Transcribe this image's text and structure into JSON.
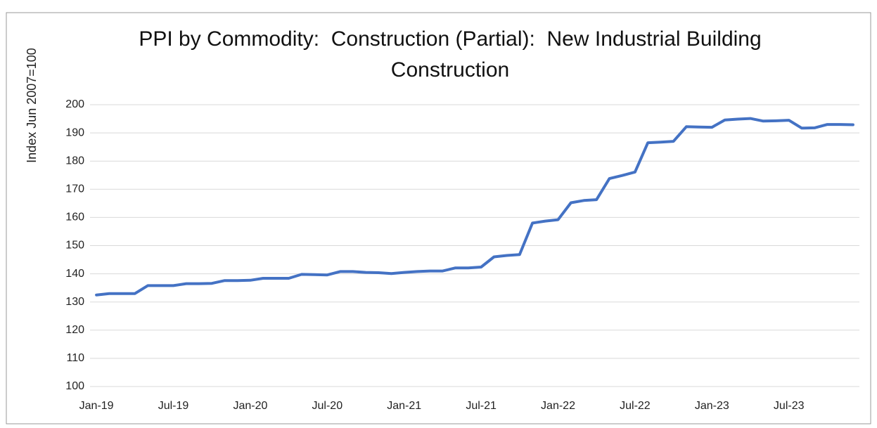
{
  "chart_data": {
    "type": "line",
    "title": "PPI by Commodity:  Construction (Partial):  New Industrial Building Construction",
    "y_label": "Index Jun 2007=100",
    "categories": [
      "Jan-19",
      null,
      null,
      null,
      null,
      null,
      "Jul-19",
      null,
      null,
      null,
      null,
      null,
      "Jan-20",
      null,
      null,
      null,
      null,
      null,
      "Jul-20",
      null,
      null,
      null,
      null,
      null,
      "Jan-21",
      null,
      null,
      null,
      null,
      null,
      "Jul-21",
      null,
      null,
      null,
      null,
      null,
      "Jan-22",
      null,
      null,
      null,
      null,
      null,
      "Jul-22",
      null,
      null,
      null,
      null,
      null,
      "Jan-23",
      null,
      null,
      null,
      null,
      null,
      "Jul-23",
      null,
      null,
      null,
      null,
      null
    ],
    "series": [
      {
        "name": "PPI",
        "color": "#4472c4",
        "values": [
          132.5,
          133,
          133,
          133,
          135.8,
          135.8,
          135.8,
          136.5,
          136.5,
          136.6,
          137.6,
          137.6,
          137.7,
          138.4,
          138.4,
          138.4,
          139.8,
          139.7,
          139.6,
          140.8,
          140.8,
          140.5,
          140.4,
          140.1,
          140.5,
          140.8,
          141,
          141,
          142.1,
          142.1,
          142.4,
          146,
          146.5,
          146.8,
          158,
          158.7,
          159.2,
          165.2,
          166,
          166.3,
          173.8,
          174.9,
          176.1,
          186.5,
          186.7,
          187,
          192.2,
          192.1,
          192,
          194.6,
          194.9,
          195.1,
          194.2,
          194.3,
          194.5,
          191.7,
          191.8,
          193,
          193,
          192.9
        ]
      }
    ],
    "ylim": [
      100,
      200
    ],
    "yticks": [
      100,
      110,
      120,
      130,
      140,
      150,
      160,
      170,
      180,
      190,
      200
    ],
    "grid": true
  }
}
